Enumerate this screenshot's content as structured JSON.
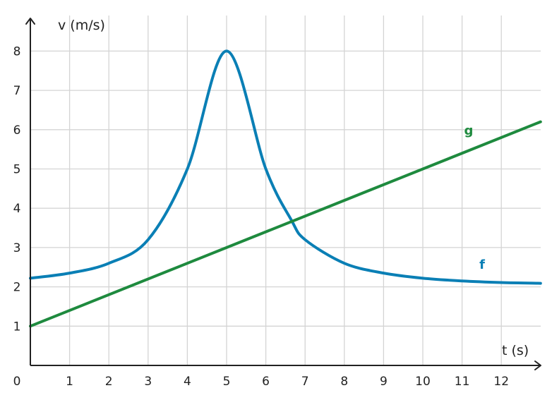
{
  "chart_data": {
    "type": "line",
    "xlabel": "t (s)",
    "ylabel": "v (m/s)",
    "origin_label": "0",
    "xlim": [
      0,
      13
    ],
    "ylim": [
      0,
      8.8
    ],
    "x_ticks": [
      1,
      2,
      3,
      4,
      5,
      6,
      7,
      8,
      9,
      10,
      11,
      12
    ],
    "y_ticks": [
      1,
      2,
      3,
      4,
      5,
      6,
      7,
      8
    ],
    "grid": true,
    "series": [
      {
        "name": "f",
        "color": "#0a7fb5",
        "kind": "peak-curve",
        "x": [
          0,
          1,
          2,
          3,
          4,
          5,
          6,
          6.65,
          7,
          8,
          9,
          10,
          11,
          12,
          13
        ],
        "y": [
          2.22,
          2.35,
          2.6,
          3.2,
          5.0,
          8.0,
          5.0,
          3.7,
          3.2,
          2.6,
          2.35,
          2.22,
          2.15,
          2.11,
          2.09
        ]
      },
      {
        "name": "g",
        "color": "#1e8a3e",
        "kind": "linear",
        "x": [
          0,
          13
        ],
        "y": [
          1.0,
          6.2
        ]
      }
    ]
  }
}
